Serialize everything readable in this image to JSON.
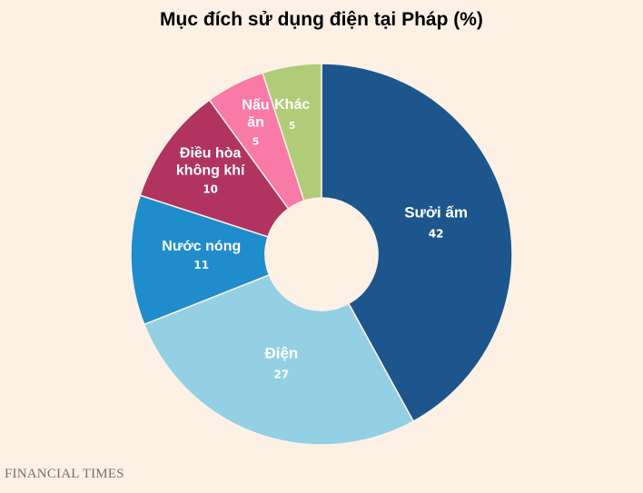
{
  "chart_data": {
    "type": "pie",
    "title": "Mục đích sử dụng điện tại Pháp (%)",
    "donut": true,
    "start_at": "top, clockwise",
    "slices": [
      {
        "label": "Sưởi ấm",
        "value": 42,
        "color": "#1d568c"
      },
      {
        "label": "Điện",
        "value": 27,
        "color": "#94d0e4"
      },
      {
        "label": "Nước nóng",
        "value": 11,
        "color": "#1f8ccc"
      },
      {
        "label": "Điều hòa\nkhông khí",
        "value": 10,
        "color": "#b03360"
      },
      {
        "label": "Nấu\năn",
        "value": 5,
        "color": "#f97aa6"
      },
      {
        "label": "Khác",
        "value": 5,
        "color": "#b0cc78"
      }
    ]
  },
  "source": "FINANCIAL TIMES"
}
